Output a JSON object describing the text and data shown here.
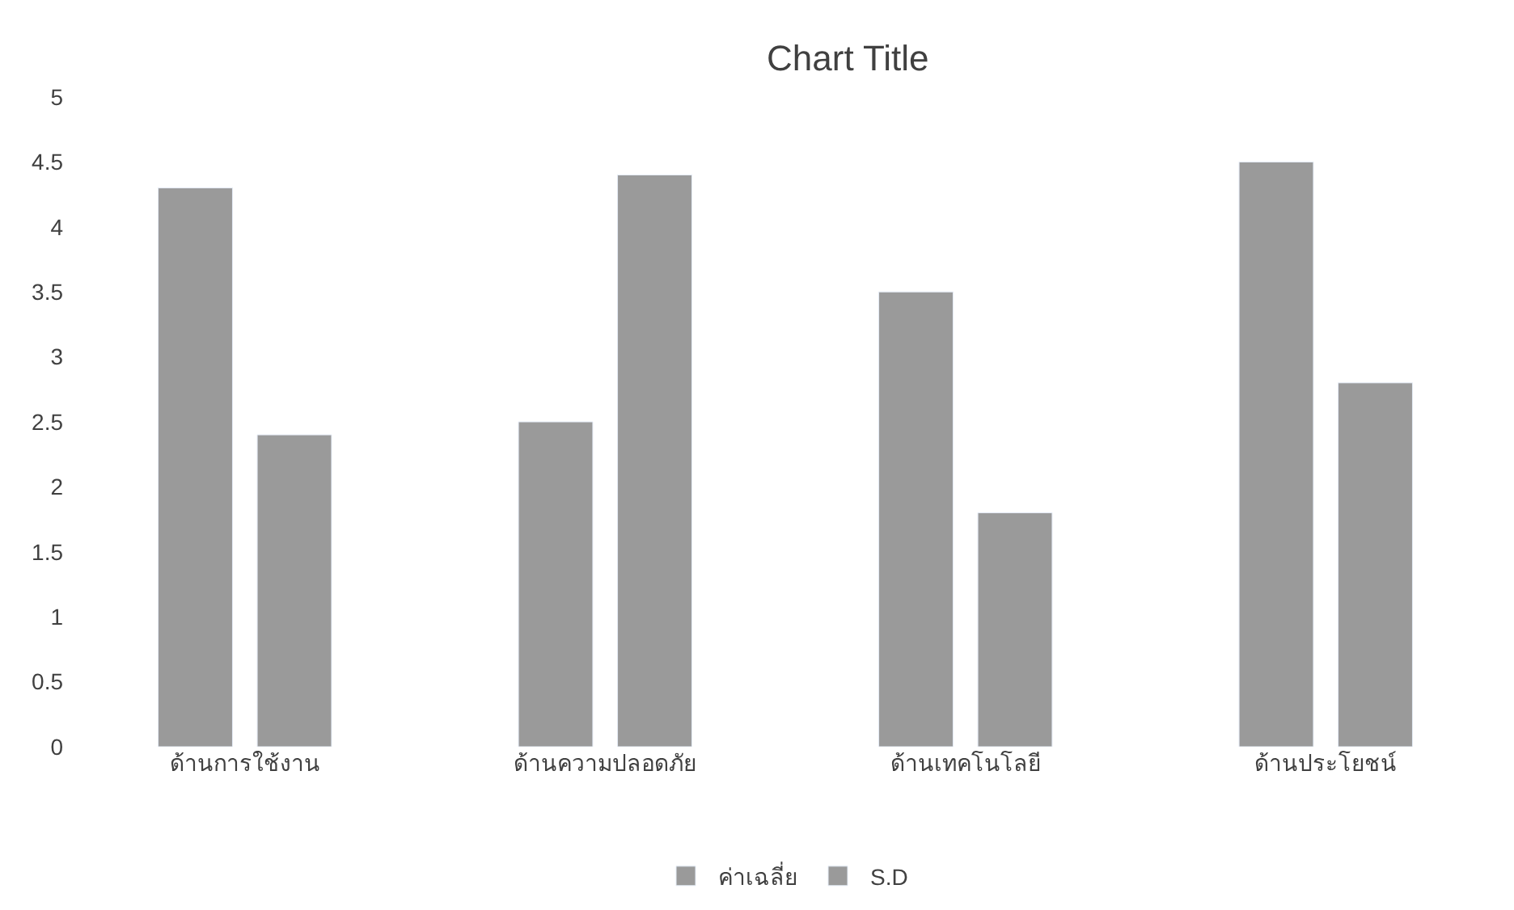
{
  "chart_data": {
    "type": "bar",
    "title": "Chart Title",
    "categories": [
      "ด้านการใช้งาน",
      "ด้านความปลอดภัย",
      "ด้านเทคโนโลยี",
      "ด้านประโยชน์"
    ],
    "series": [
      {
        "name": "ค่าเฉลี่ย",
        "color": "#9a9a9a",
        "values": [
          4.3,
          2.5,
          3.5,
          4.5
        ]
      },
      {
        "name": "S.D",
        "color": "#9a9a9a",
        "values": [
          2.4,
          4.4,
          1.8,
          2.8
        ]
      }
    ],
    "ylim": [
      0,
      5
    ],
    "yticks": [
      0,
      0.5,
      1,
      1.5,
      2,
      2.5,
      3,
      3.5,
      4,
      4.5,
      5
    ],
    "legend": "bottom"
  }
}
